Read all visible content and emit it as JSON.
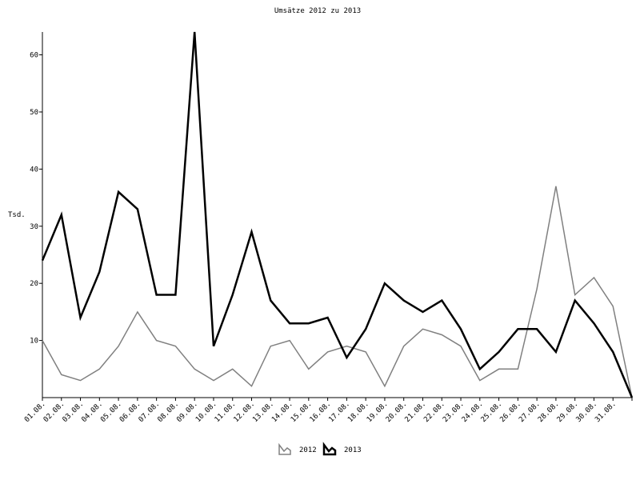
{
  "chart_data": {
    "type": "line",
    "title": "Umsätze 2012 zu 2013",
    "xlabel": "",
    "ylabel": "Tsd.",
    "ylim": [
      0,
      64
    ],
    "yticks": [
      10,
      20,
      30,
      40,
      50,
      60
    ],
    "grid": false,
    "legend_position": "bottom",
    "categories": [
      "01.08.",
      "02.08.",
      "03.08.",
      "04.08.",
      "05.08.",
      "06.08.",
      "07.08.",
      "08.08.",
      "09.08.",
      "10.08.",
      "11.08.",
      "12.08.",
      "13.08.",
      "14.08.",
      "15.08.",
      "16.08.",
      "17.08.",
      "18.08.",
      "19.08.",
      "20.08.",
      "21.08.",
      "22.08.",
      "23.08.",
      "24.08.",
      "25.08.",
      "26.08.",
      "27.08.",
      "28.08.",
      "29.08.",
      "30.08.",
      "31.08.",
      ""
    ],
    "series": [
      {
        "name": "2012",
        "color": "#808080",
        "values": [
          10,
          4,
          3,
          5,
          9,
          15,
          10,
          9,
          5,
          3,
          5,
          2,
          9,
          10,
          5,
          8,
          9,
          8,
          2,
          9,
          12,
          11,
          9,
          3,
          5,
          5,
          19,
          37,
          18,
          21,
          16,
          0
        ]
      },
      {
        "name": "2013",
        "color": "#000000",
        "values": [
          24,
          32,
          14,
          22,
          36,
          33,
          18,
          18,
          64,
          9,
          18,
          29,
          17,
          13,
          13,
          14,
          7,
          12,
          20,
          17,
          15,
          17,
          12,
          5,
          8,
          12,
          12,
          8,
          17,
          13,
          8,
          0
        ]
      }
    ]
  }
}
